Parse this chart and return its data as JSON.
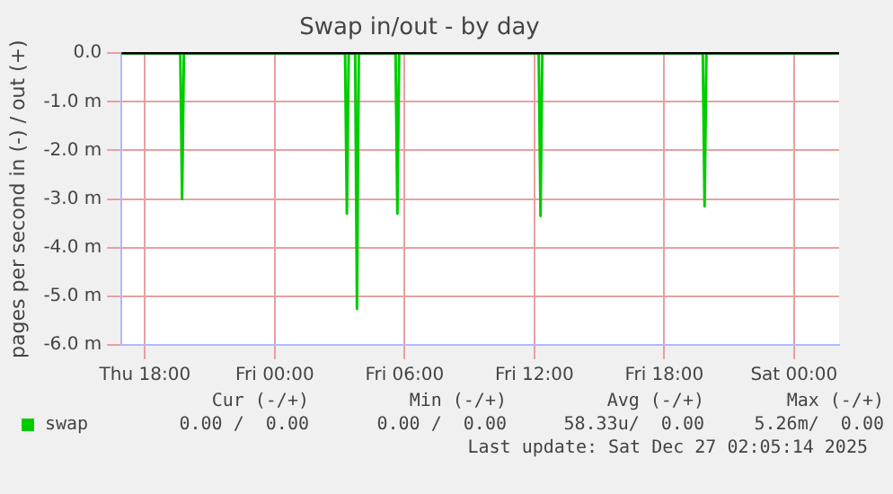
{
  "chart_data": {
    "type": "line",
    "title": "Swap in/out - by day",
    "ylabel": "pages per second in (-) / out (+)",
    "xlim": [
      "2025-12-25T16:55",
      "2025-12-27T02:05"
    ],
    "xticks": [
      {
        "value": "2025-12-25T18:00",
        "label": "Thu 18:00"
      },
      {
        "value": "2025-12-26T00:00",
        "label": "Fri 00:00"
      },
      {
        "value": "2025-12-26T06:00",
        "label": "Fri 06:00"
      },
      {
        "value": "2025-12-26T12:00",
        "label": "Fri 12:00"
      },
      {
        "value": "2025-12-26T18:00",
        "label": "Fri 18:00"
      },
      {
        "value": "2025-12-27T00:00",
        "label": "Sat 00:00"
      }
    ],
    "ylim": [
      -6,
      0
    ],
    "yticks": [
      {
        "value": -6,
        "label": "-6.0 m"
      },
      {
        "value": -5,
        "label": "-5.0 m"
      },
      {
        "value": -4,
        "label": "-4.0 m"
      },
      {
        "value": -3,
        "label": "-3.0 m"
      },
      {
        "value": -2,
        "label": "-2.0 m"
      },
      {
        "value": -1,
        "label": "-1.0 m"
      },
      {
        "value": 0,
        "label": "0.0"
      }
    ],
    "grid": true,
    "legend": "bottom",
    "marker": "none",
    "line_style": "solid",
    "ref_lines": [
      {
        "axis": "y",
        "value": 0,
        "color": "#000000"
      }
    ],
    "series": [
      {
        "name": "swap",
        "color": "#00cc00",
        "x": [
          "2025-12-25T16:55",
          "2025-12-25T19:38",
          "2025-12-25T19:43",
          "2025-12-25T19:48",
          "2025-12-26T03:15",
          "2025-12-26T03:20",
          "2025-12-26T03:25",
          "2025-12-26T03:43",
          "2025-12-26T03:48",
          "2025-12-26T03:53",
          "2025-12-26T05:35",
          "2025-12-26T05:40",
          "2025-12-26T05:45",
          "2025-12-26T12:12",
          "2025-12-26T12:17",
          "2025-12-26T12:22",
          "2025-12-26T19:47",
          "2025-12-26T19:52",
          "2025-12-26T19:57",
          "2025-12-27T02:05"
        ],
        "values": [
          0,
          0,
          -3.0,
          0,
          0,
          -3.3,
          0,
          0,
          -5.26,
          0,
          0,
          -3.3,
          0,
          0,
          -3.35,
          0,
          0,
          -3.15,
          0,
          0
        ]
      }
    ],
    "annotations": [
      "Cur (-/+)",
      "Min (-/+)",
      "Avg (-/+)",
      "Max (-/+)",
      "0.00 /  0.00",
      "0.00 /  0.00",
      "58.33u/  0.00",
      "5.26m/  0.00",
      "Last update: Sat Dec 27 02:05:14 2025"
    ]
  }
}
